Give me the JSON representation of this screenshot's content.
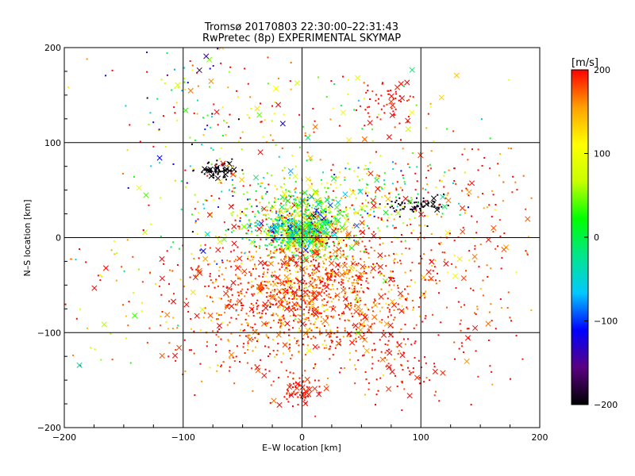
{
  "chart_data": {
    "type": "scatter",
    "title": "Tromsø 20170803 22:30:00–22:31:43",
    "subtitle": "RwPretec (8p) EXPERIMENTAL SKYMAP",
    "xlabel": "E–W location [km]",
    "ylabel": "N–S location [km]",
    "xlim": [
      -200,
      200
    ],
    "ylim": [
      -200,
      200
    ],
    "x_ticks": [
      "−200",
      "−100",
      "0",
      "100",
      "200"
    ],
    "y_ticks": [
      "−200",
      "−100",
      "0",
      "100",
      "200"
    ],
    "grid": true,
    "color_value": "line-of-sight velocity",
    "colorbar": {
      "label": "[m/s]",
      "range": [
        -200,
        200
      ],
      "ticks": [
        "200",
        "100",
        "0",
        "−100",
        "−200"
      ],
      "placement": "right"
    },
    "colors": {
      "ramp": [
        "#000000",
        "#5a0082",
        "#0000ff",
        "#00c8ff",
        "#00e68c",
        "#00ff00",
        "#c8ff00",
        "#ffff00",
        "#ffa000",
        "#ff0000"
      ]
    },
    "markers": [
      "dot",
      "cross"
    ],
    "clusters": [
      {
        "x": 0,
        "y": 0,
        "sx": 14,
        "sy": 10,
        "n": 330,
        "v": 40,
        "vs": 60
      },
      {
        "x": 0,
        "y": 22,
        "sx": 22,
        "sy": 18,
        "n": 420,
        "v": 60,
        "vs": 75
      },
      {
        "x": -5,
        "y": 8,
        "sx": 15,
        "sy": 8,
        "n": 250,
        "v": -30,
        "vs": 70
      },
      {
        "x": -5,
        "y": -55,
        "sx": 42,
        "sy": 32,
        "n": 900,
        "v": 185,
        "vs": 30
      },
      {
        "x": 35,
        "y": -40,
        "sx": 38,
        "sy": 35,
        "n": 280,
        "v": 165,
        "vs": 45
      },
      {
        "x": 0,
        "y": -100,
        "sx": 55,
        "sy": 30,
        "n": 240,
        "v": 180,
        "vs": 35
      },
      {
        "x": 0,
        "y": -162,
        "sx": 8,
        "sy": 8,
        "n": 70,
        "v": 200,
        "vs": 10
      },
      {
        "x": 75,
        "y": 140,
        "sx": 12,
        "sy": 14,
        "n": 60,
        "v": 200,
        "vs": 10
      },
      {
        "x": -70,
        "y": 70,
        "sx": 8,
        "sy": 5,
        "n": 70,
        "v": -200,
        "vs": 8
      },
      {
        "x": 95,
        "y": 34,
        "sx": 12,
        "sy": 4,
        "n": 70,
        "v": -200,
        "vs": 10
      },
      {
        "x": 50,
        "y": 40,
        "sx": 40,
        "sy": 25,
        "n": 220,
        "v": 70,
        "vs": 90
      },
      {
        "x": -60,
        "y": 35,
        "sx": 30,
        "sy": 35,
        "n": 120,
        "v": 20,
        "vs": 120
      },
      {
        "x": 130,
        "y": -40,
        "sx": 35,
        "sy": 50,
        "n": 130,
        "v": 190,
        "vs": 30
      },
      {
        "x": -130,
        "y": -60,
        "sx": 40,
        "sy": 50,
        "n": 90,
        "v": 150,
        "vs": 80
      },
      {
        "x": 80,
        "y": -130,
        "sx": 35,
        "sy": 25,
        "n": 100,
        "v": 200,
        "vs": 15
      },
      {
        "x": 0,
        "y": 100,
        "sx": 80,
        "sy": 55,
        "n": 200,
        "v": 120,
        "vs": 110
      },
      {
        "x": 150,
        "y": 60,
        "sx": 25,
        "sy": 30,
        "n": 60,
        "v": 190,
        "vs": 25
      },
      {
        "x": -90,
        "y": 150,
        "sx": 30,
        "sy": 30,
        "n": 60,
        "v": 60,
        "vs": 160
      }
    ]
  }
}
